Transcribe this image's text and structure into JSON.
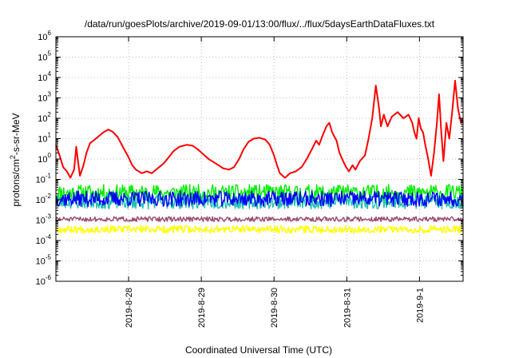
{
  "chart_data": {
    "type": "line",
    "title": "/data/run/goesPlots/archive/2019-09-01/13:00/flux/../flux/5daysEarthDataFluxes.txt",
    "xlabel": "Coordinated Universal Time (UTC)",
    "ylabel_parts": [
      "protons/cm",
      "2",
      "-s-sr-MeV"
    ],
    "y_scale": "log",
    "ylim": [
      1e-06,
      1000000
    ],
    "xlim": [
      0,
      5.6
    ],
    "grid": true,
    "x_ticks": [
      {
        "x": 1.0,
        "label": "2019-8-28"
      },
      {
        "x": 2.0,
        "label": "2019-8-29"
      },
      {
        "x": 3.0,
        "label": "2019-8-30"
      },
      {
        "x": 4.0,
        "label": "2019-8-31"
      },
      {
        "x": 5.0,
        "label": "2019-9-1"
      }
    ],
    "y_ticks": [
      {
        "exp": -6,
        "label_base": "10",
        "label_exp": "-6"
      },
      {
        "exp": -5,
        "label_base": "10",
        "label_exp": "-5"
      },
      {
        "exp": -4,
        "label_base": "10",
        "label_exp": "-4"
      },
      {
        "exp": -3,
        "label_base": "10",
        "label_exp": "-3"
      },
      {
        "exp": -2,
        "label_base": "10",
        "label_exp": "-2"
      },
      {
        "exp": -1,
        "label_base": "10",
        "label_exp": "-1"
      },
      {
        "exp": 0,
        "label_base": "10",
        "label_exp": "0"
      },
      {
        "exp": 1,
        "label_base": "10",
        "label_exp": "1"
      },
      {
        "exp": 2,
        "label_base": "10",
        "label_exp": "2"
      },
      {
        "exp": 3,
        "label_base": "10",
        "label_exp": "3"
      },
      {
        "exp": 4,
        "label_base": "10",
        "label_exp": "4"
      },
      {
        "exp": 5,
        "label_base": "10",
        "label_exp": "5"
      },
      {
        "exp": 6,
        "label_base": "10",
        "label_exp": "6"
      }
    ],
    "series": [
      {
        "color": "#ff0000",
        "points": [
          [
            0,
            5
          ],
          [
            0.05,
            1.5
          ],
          [
            0.1,
            0.4
          ],
          [
            0.15,
            0.25
          ],
          [
            0.2,
            0.12
          ],
          [
            0.25,
            0.3
          ],
          [
            0.28,
            4
          ],
          [
            0.3,
            1
          ],
          [
            0.33,
            0.15
          ],
          [
            0.38,
            0.5
          ],
          [
            0.42,
            2
          ],
          [
            0.47,
            6
          ],
          [
            0.55,
            10
          ],
          [
            0.65,
            20
          ],
          [
            0.72,
            28
          ],
          [
            0.78,
            22
          ],
          [
            0.85,
            12
          ],
          [
            0.92,
            4
          ],
          [
            1.0,
            1.2
          ],
          [
            1.05,
            0.5
          ],
          [
            1.1,
            0.3
          ],
          [
            1.18,
            0.2
          ],
          [
            1.25,
            0.25
          ],
          [
            1.32,
            0.2
          ],
          [
            1.4,
            0.35
          ],
          [
            1.48,
            0.6
          ],
          [
            1.55,
            1.2
          ],
          [
            1.62,
            2.5
          ],
          [
            1.7,
            4
          ],
          [
            1.8,
            5
          ],
          [
            1.88,
            4.5
          ],
          [
            1.95,
            3
          ],
          [
            2.02,
            1.8
          ],
          [
            2.1,
            1
          ],
          [
            2.2,
            0.6
          ],
          [
            2.3,
            0.35
          ],
          [
            2.38,
            0.3
          ],
          [
            2.45,
            0.4
          ],
          [
            2.52,
            1
          ],
          [
            2.58,
            3
          ],
          [
            2.65,
            7
          ],
          [
            2.72,
            10
          ],
          [
            2.8,
            11
          ],
          [
            2.88,
            9
          ],
          [
            2.94,
            5
          ],
          [
            3.0,
            1.5
          ],
          [
            3.04,
            0.5
          ],
          [
            3.08,
            0.2
          ],
          [
            3.15,
            0.12
          ],
          [
            3.22,
            0.2
          ],
          [
            3.3,
            0.25
          ],
          [
            3.38,
            0.4
          ],
          [
            3.45,
            1
          ],
          [
            3.52,
            3
          ],
          [
            3.58,
            8
          ],
          [
            3.62,
            5
          ],
          [
            3.66,
            12
          ],
          [
            3.72,
            40
          ],
          [
            3.76,
            60
          ],
          [
            3.8,
            20
          ],
          [
            3.86,
            8
          ],
          [
            3.9,
            2
          ],
          [
            3.95,
            0.8
          ],
          [
            3.99,
            0.4
          ],
          [
            4.03,
            0.25
          ],
          [
            4.08,
            0.5
          ],
          [
            4.12,
            0.3
          ],
          [
            4.18,
            0.8
          ],
          [
            4.25,
            1.5
          ],
          [
            4.3,
            10
          ],
          [
            4.35,
            100
          ],
          [
            4.4,
            4000
          ],
          [
            4.44,
            400
          ],
          [
            4.47,
            40
          ],
          [
            4.51,
            150
          ],
          [
            4.56,
            40
          ],
          [
            4.62,
            120
          ],
          [
            4.7,
            200
          ],
          [
            4.78,
            100
          ],
          [
            4.85,
            150
          ],
          [
            4.9,
            60
          ],
          [
            4.93,
            20
          ],
          [
            4.96,
            10
          ],
          [
            4.99,
            100
          ],
          [
            5.02,
            30
          ],
          [
            5.05,
            20
          ],
          [
            5.08,
            5
          ],
          [
            5.12,
            1
          ],
          [
            5.16,
            0.15
          ],
          [
            5.2,
            2
          ],
          [
            5.24,
            60
          ],
          [
            5.27,
            1500
          ],
          [
            5.3,
            20
          ],
          [
            5.33,
            0.8
          ],
          [
            5.37,
            60
          ],
          [
            5.41,
            10
          ],
          [
            5.45,
            200
          ],
          [
            5.49,
            7000
          ],
          [
            5.53,
            300
          ],
          [
            5.57,
            60
          ],
          [
            5.6,
            80
          ]
        ]
      },
      {
        "color": "#00ee00",
        "base_exp": -1.65,
        "amp": 0.4,
        "seed": 11
      },
      {
        "color": "#20c0b0",
        "base_exp": -2.1,
        "amp": 0.35,
        "seed": 23
      },
      {
        "color": "#0000ff",
        "base_exp": -1.95,
        "amp": 0.38,
        "seed": 37
      },
      {
        "color": "#9a4a72",
        "base_exp": -2.95,
        "amp": 0.12,
        "seed": 51
      },
      {
        "color": "#ffff00",
        "base_exp": -3.45,
        "amp": 0.18,
        "seed": 67
      }
    ]
  }
}
